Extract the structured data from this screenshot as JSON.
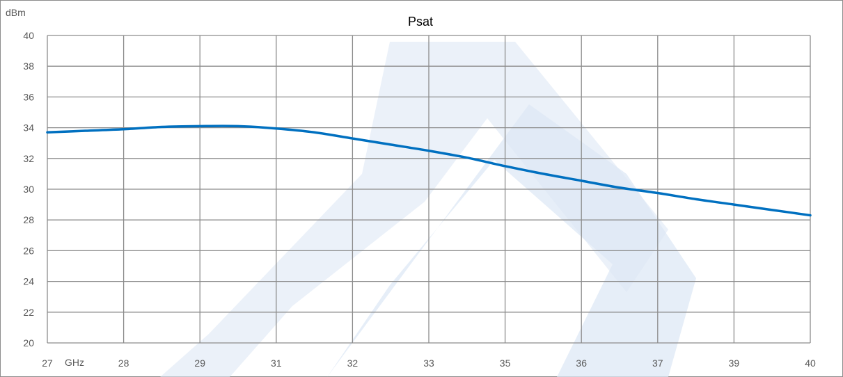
{
  "colors": {
    "series": "#0070c0",
    "grid": "#8c8c8c",
    "watermark": "#dde8f5",
    "tick_text": "#595959"
  },
  "chart_data": {
    "type": "line",
    "title": "Psat",
    "ylabel": "dBm",
    "xlabel": "",
    "x_unit_label": "GHz",
    "ylim": [
      20,
      40
    ],
    "yticks": [
      20,
      22,
      24,
      26,
      28,
      30,
      32,
      34,
      36,
      38,
      40
    ],
    "x_tick_labels": [
      "27",
      "28",
      "29",
      "31",
      "32",
      "33",
      "35",
      "36",
      "37",
      "39",
      "40"
    ],
    "grid": true,
    "legend": "none",
    "series": [
      {
        "x_index": [
          0,
          0.5,
          1,
          1.5,
          2,
          2.5,
          3,
          3.5,
          4,
          4.5,
          5,
          5.5,
          6,
          6.5,
          7,
          7.5,
          8,
          8.5,
          9,
          9.5,
          10
        ],
        "values": [
          33.7,
          33.8,
          33.9,
          34.05,
          34.1,
          34.1,
          33.95,
          33.7,
          33.3,
          32.9,
          32.5,
          32.05,
          31.5,
          31.0,
          30.55,
          30.1,
          29.75,
          29.35,
          29.0,
          28.65,
          28.3
        ]
      }
    ]
  }
}
